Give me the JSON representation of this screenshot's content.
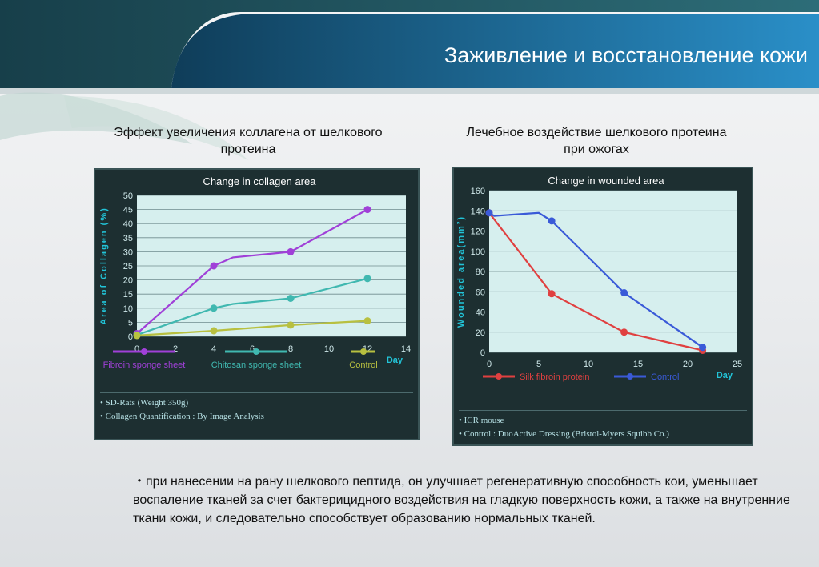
{
  "header": {
    "title": "Заживление и восстановление кожи"
  },
  "captions": {
    "left": "Эффект увеличения коллагена от шелкового протеина",
    "right": "Лечебное воздействие шелкового протеина при ожогах"
  },
  "notes_left": [
    "• SD-Rats (Weight 350g)",
    "• Collagen Quantification : By Image Analysis"
  ],
  "notes_right": [
    "• ICR mouse",
    "• Control : DuoActive Dressing (Bristol-Myers Squibb Co.)"
  ],
  "bottom_text": "・при нанесении на рану шелкового пептида, он улучшает регенеративную способность кои, уменьшает воспаление тканей за счет бактерицидного воздействия на гладкую поверхность кожи, а также на внутренние ткани кожи, и следовательно способствует образованию нормальных тканей.",
  "colors": {
    "header_blue": "#1f7fb7",
    "plot_bg": "#d6efee",
    "fibroin": "#a040d8",
    "chitosan": "#40b8b0",
    "control_left": "#b8c040",
    "silk": "#e04040",
    "control_right": "#3a5ad8"
  },
  "chart_data": [
    {
      "type": "line",
      "title": "Change in collagen area",
      "xlabel": "Day",
      "ylabel": "Area of Collagen (%)",
      "xlim": [
        0,
        14
      ],
      "ylim": [
        0,
        50
      ],
      "xticks": [
        0,
        2,
        4,
        6,
        8,
        10,
        12,
        14
      ],
      "yticks": [
        0,
        5,
        10,
        15,
        20,
        25,
        30,
        35,
        40,
        45,
        50
      ],
      "legend_position": "bottom",
      "series": [
        {
          "name": "Fibroin sponge sheet",
          "color": "#a040d8",
          "x": [
            0,
            4,
            5,
            8,
            12
          ],
          "y": [
            1,
            25,
            28,
            30,
            45
          ],
          "markers": [
            true,
            true,
            false,
            true,
            true
          ]
        },
        {
          "name": "Chitosan sponge sheet",
          "color": "#40b8b0",
          "x": [
            0,
            4,
            5,
            8,
            12
          ],
          "y": [
            0.5,
            10,
            11.5,
            13.5,
            20.5
          ],
          "markers": [
            true,
            true,
            false,
            true,
            true
          ]
        },
        {
          "name": "Control",
          "color": "#b8c040",
          "x": [
            0,
            4,
            8,
            12
          ],
          "y": [
            0.3,
            2,
            4,
            5.5
          ],
          "markers": [
            true,
            true,
            true,
            true
          ]
        }
      ]
    },
    {
      "type": "line",
      "title": "Change in wounded area",
      "xlabel": "Day",
      "ylabel": "Wounded area(mm²)",
      "xlim": [
        0,
        25
      ],
      "ylim": [
        0,
        160
      ],
      "xticks": [
        0,
        5,
        10,
        15,
        20,
        25
      ],
      "yticks": [
        0,
        20,
        40,
        60,
        80,
        100,
        120,
        140,
        160
      ],
      "legend_position": "bottom",
      "series": [
        {
          "name": "Silk fibroin protein",
          "color": "#e04040",
          "x": [
            0,
            6.3,
            13.6,
            21.5
          ],
          "y": [
            138,
            58,
            20,
            2
          ],
          "markers": [
            true,
            true,
            true,
            true
          ]
        },
        {
          "name": "Control",
          "color": "#3a5ad8",
          "x": [
            0,
            0.5,
            5,
            6.3,
            13.6,
            21.5
          ],
          "y": [
            138,
            135,
            138,
            130,
            59,
            5
          ],
          "markers": [
            true,
            false,
            false,
            true,
            true,
            true
          ]
        }
      ]
    }
  ]
}
